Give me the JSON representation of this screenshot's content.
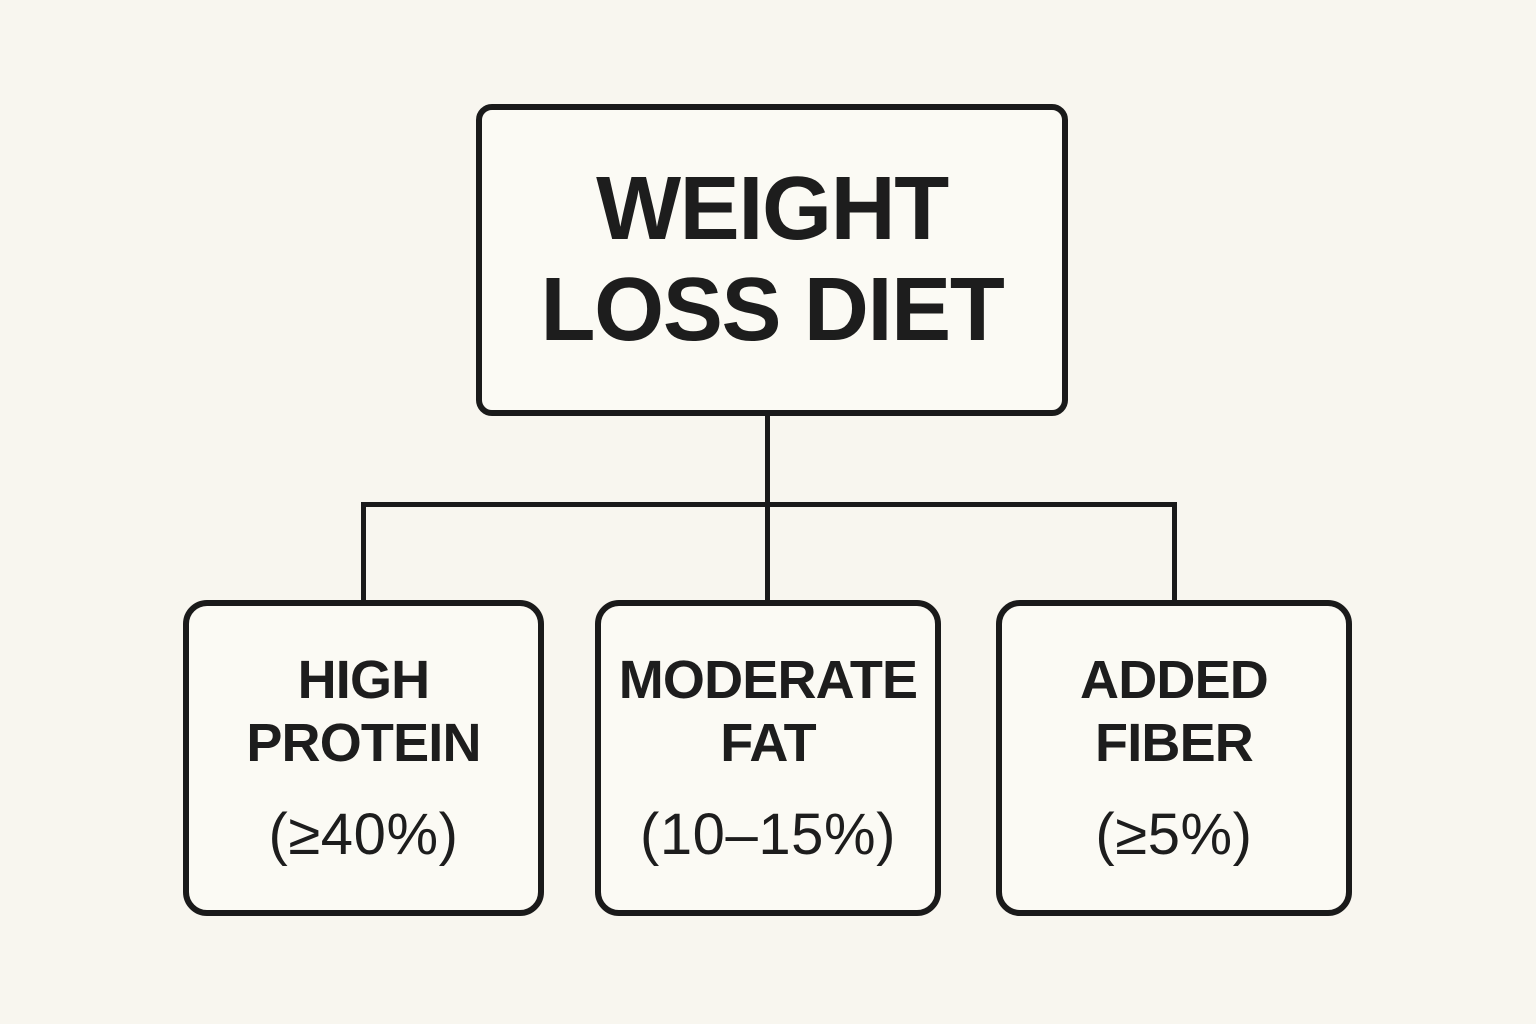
{
  "diagram": {
    "type": "flowchart",
    "root": {
      "label": "WEIGHT LOSS DIET"
    },
    "children": [
      {
        "title": "HIGH PROTEIN",
        "value": "(≥40%)"
      },
      {
        "title": "MODERATE FAT",
        "value": "(10–15%)"
      },
      {
        "title": "ADDED FIBER",
        "value": "(≥5%)"
      }
    ]
  },
  "colors": {
    "background": "#f8f6ef",
    "box_fill": "#fbfaf4",
    "line": "#1a1a1a",
    "text": "#1d1d1d"
  }
}
